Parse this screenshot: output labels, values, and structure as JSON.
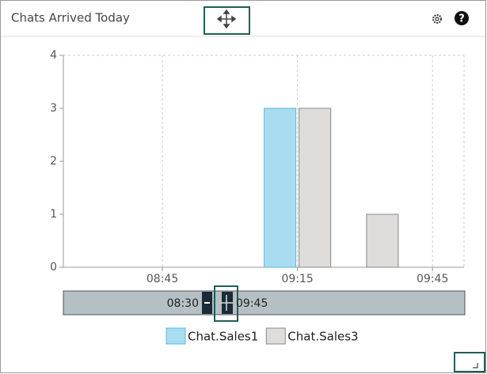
{
  "widget": {
    "title": "Chats Arrived Today"
  },
  "chart_data": {
    "type": "bar",
    "x": [
      "09:15",
      "09:30"
    ],
    "series": [
      {
        "name": "Chat.Sales1",
        "color": "#a8dcf0",
        "values": [
          3,
          0
        ]
      },
      {
        "name": "Chat.Sales3",
        "color": "#e0dcda",
        "values": [
          3,
          1
        ]
      }
    ],
    "xlim": [
      "08:23",
      "09:52"
    ],
    "xticks": [
      "08:45",
      "09:15",
      "09:45"
    ],
    "ylim": [
      0,
      4
    ],
    "yticks": [
      0,
      1,
      2,
      3,
      4
    ],
    "grid": true
  },
  "range_selector": {
    "start": "08:30",
    "end": "09:45"
  }
}
